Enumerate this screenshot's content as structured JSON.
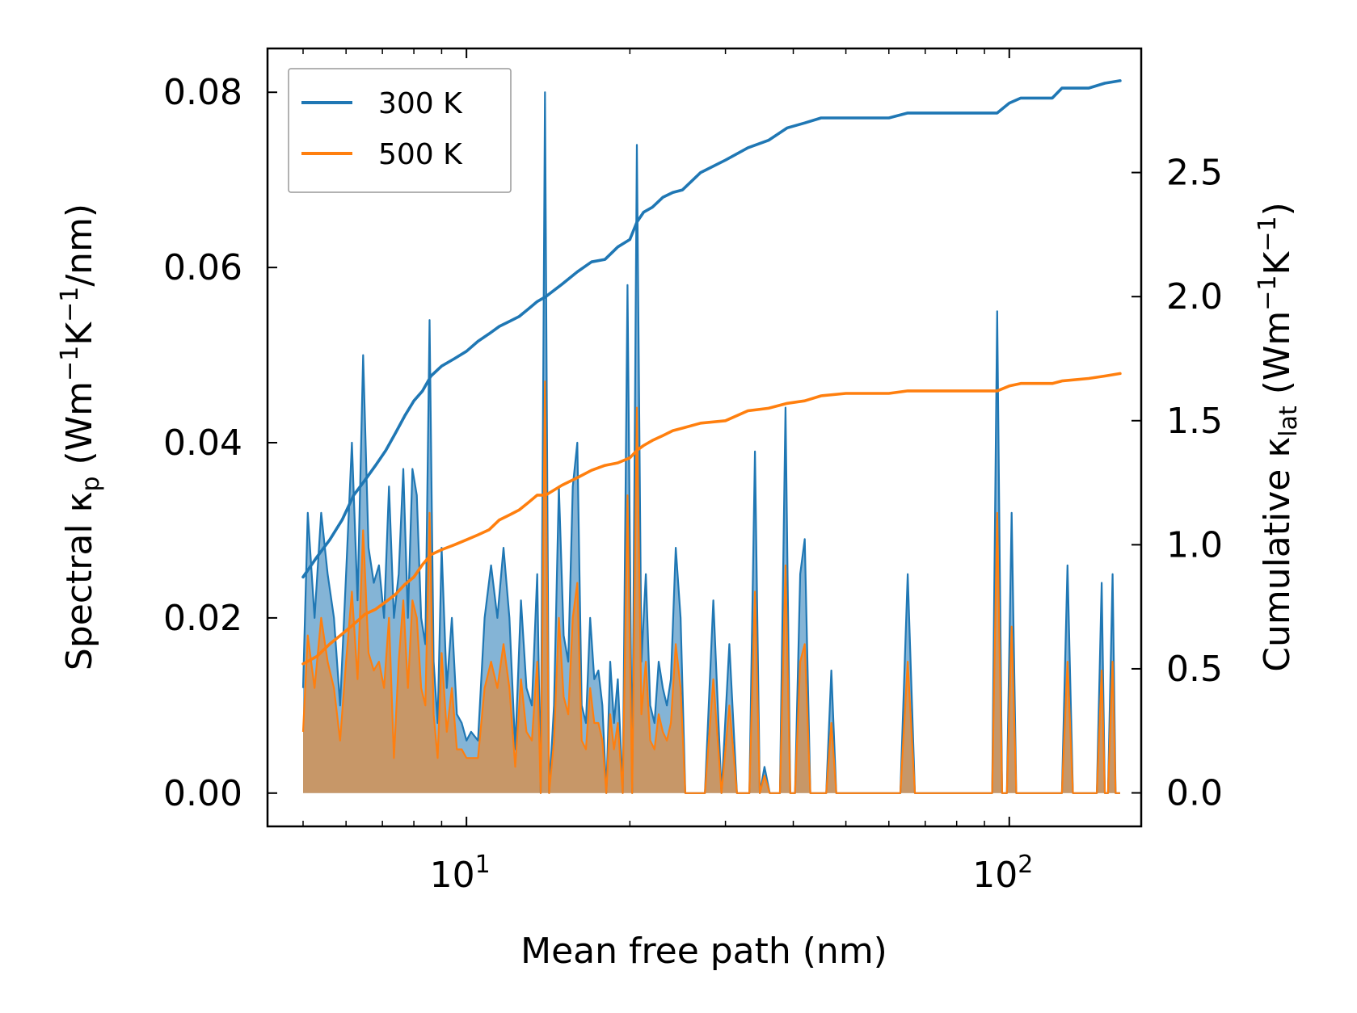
{
  "colors": {
    "series_300K": "#1f77b4",
    "series_500K": "#ff7f0e",
    "fill_300K": "#1f77b4",
    "fill_500K": "#ff7f0e",
    "axes": "#000000",
    "legend_border": "#999999"
  },
  "chart_data": {
    "type": "line",
    "title": "",
    "xlabel": "Mean free path (nm)",
    "ylabel_left": "Spectral κp (Wm⁻¹K⁻¹/nm)",
    "ylabel_right": "Cumulative κlat (Wm⁻¹K⁻¹)",
    "ylabel_left_parts": {
      "pre": "Spectral κ",
      "sub": "p",
      "unit_a": " (Wm",
      "sup1": "−1",
      "unit_b": "K",
      "sup2": "−1",
      "unit_c": "/nm)"
    },
    "ylabel_right_parts": {
      "pre": "Cumulative κ",
      "sub": "lat",
      "unit_a": " (Wm",
      "sup1": "−1",
      "unit_b": "K",
      "sup2": "−1",
      "unit_c": ")"
    },
    "xscale": "log",
    "xlim": [
      4.3,
      175
    ],
    "ylim_left": [
      -0.0038,
      0.085
    ],
    "ylim_right": [
      -0.135,
      3.0
    ],
    "x_ticks": [
      {
        "value": 10,
        "base": "10",
        "exp": "1"
      },
      {
        "value": 100,
        "base": "10",
        "exp": "2"
      }
    ],
    "y_ticks_left": [
      "0.00",
      "0.02",
      "0.04",
      "0.06",
      "0.08"
    ],
    "y_ticks_left_values": [
      0,
      0.02,
      0.04,
      0.06,
      0.08
    ],
    "y_ticks_right": [
      "0.0",
      "0.5",
      "1.0",
      "1.5",
      "2.0",
      "2.5"
    ],
    "y_ticks_right_values": [
      0,
      0.5,
      1.0,
      1.5,
      2.0,
      2.5
    ],
    "legend": {
      "position": "top-left",
      "entries": [
        "300 K",
        "500 K"
      ]
    },
    "series": [
      {
        "name": "300 K",
        "kind": "spectral",
        "x": [
          5.0,
          5.1,
          5.25,
          5.4,
          5.55,
          5.7,
          5.85,
          6.0,
          6.15,
          6.3,
          6.45,
          6.6,
          6.75,
          6.9,
          7.05,
          7.2,
          7.35,
          7.5,
          7.65,
          7.8,
          7.95,
          8.1,
          8.25,
          8.4,
          8.55,
          8.7,
          8.85,
          9.0,
          9.2,
          9.4,
          9.6,
          9.8,
          10.0,
          10.2,
          10.5,
          10.8,
          11.1,
          11.4,
          11.7,
          12.0,
          12.3,
          12.6,
          12.9,
          13.2,
          13.5,
          13.7,
          13.95,
          14.2,
          14.5,
          14.8,
          15.1,
          15.4,
          15.7,
          16.0,
          16.3,
          16.6,
          16.9,
          17.2,
          17.5,
          17.8,
          18.1,
          18.4,
          18.7,
          19.0,
          19.4,
          19.8,
          20.2,
          20.6,
          21.0,
          21.4,
          21.8,
          22.2,
          22.6,
          23.0,
          23.4,
          23.8,
          24.3,
          24.8,
          25.3,
          25.8,
          26.5,
          27.5,
          28.5,
          29.5,
          30.5,
          31.5,
          32.5,
          33.2,
          34.0,
          34.7,
          35.4,
          36.2,
          37.0,
          37.8,
          38.7,
          39.5,
          40.3,
          41.2,
          42.0,
          43.0,
          44.0,
          45.0,
          46.0,
          47.0,
          48.0,
          50.0,
          55.0,
          60.0,
          63.0,
          65.0,
          67.0,
          70.0,
          80.0,
          90.0,
          93.0,
          95.0,
          97.0,
          99.0,
          101.0,
          103.0,
          105.0,
          110.0,
          120.0,
          125.0,
          128.0,
          131.0,
          135.0,
          140.0,
          145.0,
          148.0,
          150.0,
          152.0,
          155.0,
          157.0,
          160.0
        ],
        "values": [
          0.012,
          0.032,
          0.02,
          0.032,
          0.025,
          0.02,
          0.01,
          0.025,
          0.04,
          0.022,
          0.05,
          0.028,
          0.024,
          0.026,
          0.02,
          0.035,
          0.02,
          0.025,
          0.037,
          0.02,
          0.037,
          0.034,
          0.02,
          0.017,
          0.054,
          0.015,
          0.008,
          0.028,
          0.012,
          0.02,
          0.009,
          0.008,
          0.006,
          0.007,
          0.006,
          0.02,
          0.026,
          0.02,
          0.028,
          0.02,
          0.005,
          0.022,
          0.012,
          0.01,
          0.025,
          0.0,
          0.08,
          0.0,
          0.01,
          0.035,
          0.018,
          0.015,
          0.035,
          0.04,
          0.01,
          0.008,
          0.02,
          0.013,
          0.014,
          0.01,
          0.0,
          0.015,
          0.008,
          0.013,
          0.0,
          0.058,
          0.0,
          0.074,
          0.015,
          0.025,
          0.01,
          0.008,
          0.015,
          0.012,
          0.01,
          0.013,
          0.028,
          0.02,
          0.0,
          0.0,
          0.0,
          0.0,
          0.022,
          0.0,
          0.017,
          0.0,
          0.0,
          0.0,
          0.039,
          0.0,
          0.003,
          0.0,
          0.0,
          0.0,
          0.044,
          0.0,
          0.0,
          0.025,
          0.029,
          0.0,
          0.0,
          0.0,
          0.0,
          0.014,
          0.0,
          0.0,
          0.0,
          0.0,
          0.0,
          0.025,
          0.0,
          0.0,
          0.0,
          0.0,
          0.0,
          0.055,
          0.0,
          0.0,
          0.032,
          0.0,
          0.0,
          0.0,
          0.0,
          0.0,
          0.026,
          0.0,
          0.0,
          0.0,
          0.0,
          0.024,
          0.0,
          0.0,
          0.025,
          0.0,
          0.0
        ]
      },
      {
        "name": "500 K",
        "kind": "spectral",
        "x": [
          5.0,
          5.1,
          5.25,
          5.4,
          5.55,
          5.7,
          5.85,
          6.0,
          6.15,
          6.3,
          6.45,
          6.6,
          6.75,
          6.9,
          7.05,
          7.2,
          7.35,
          7.5,
          7.65,
          7.8,
          7.95,
          8.1,
          8.25,
          8.4,
          8.55,
          8.7,
          8.85,
          9.0,
          9.2,
          9.4,
          9.6,
          9.8,
          10.0,
          10.2,
          10.5,
          10.8,
          11.1,
          11.4,
          11.7,
          12.0,
          12.3,
          12.6,
          12.9,
          13.2,
          13.5,
          13.7,
          13.95,
          14.2,
          14.5,
          14.8,
          15.1,
          15.4,
          15.7,
          16.0,
          16.3,
          16.6,
          16.9,
          17.2,
          17.5,
          17.8,
          18.1,
          18.4,
          18.7,
          19.0,
          19.4,
          19.8,
          20.2,
          20.6,
          21.0,
          21.4,
          21.8,
          22.2,
          22.6,
          23.0,
          23.4,
          23.8,
          24.3,
          24.8,
          25.3,
          25.8,
          26.5,
          27.5,
          28.5,
          29.5,
          30.5,
          31.5,
          32.5,
          33.2,
          34.0,
          34.7,
          35.4,
          36.2,
          37.0,
          37.8,
          38.7,
          39.5,
          40.3,
          41.2,
          42.0,
          43.0,
          44.0,
          45.0,
          46.0,
          47.0,
          48.0,
          50.0,
          55.0,
          60.0,
          63.0,
          65.0,
          67.0,
          70.0,
          80.0,
          90.0,
          93.0,
          95.0,
          97.0,
          99.0,
          101.0,
          103.0,
          105.0,
          110.0,
          120.0,
          125.0,
          128.0,
          131.0,
          135.0,
          140.0,
          145.0,
          148.0,
          150.0,
          152.0,
          155.0,
          157.0,
          160.0
        ],
        "values": [
          0.007,
          0.018,
          0.012,
          0.02,
          0.015,
          0.012,
          0.006,
          0.015,
          0.023,
          0.013,
          0.03,
          0.016,
          0.014,
          0.015,
          0.012,
          0.02,
          0.004,
          0.015,
          0.022,
          0.012,
          0.022,
          0.02,
          0.012,
          0.01,
          0.032,
          0.009,
          0.004,
          0.016,
          0.007,
          0.012,
          0.005,
          0.005,
          0.004,
          0.004,
          0.004,
          0.012,
          0.015,
          0.012,
          0.017,
          0.012,
          0.003,
          0.013,
          0.007,
          0.006,
          0.015,
          0.0,
          0.047,
          0.0,
          0.006,
          0.02,
          0.011,
          0.009,
          0.02,
          0.024,
          0.006,
          0.005,
          0.012,
          0.008,
          0.008,
          0.006,
          0.0,
          0.009,
          0.005,
          0.008,
          0.0,
          0.034,
          0.0,
          0.044,
          0.009,
          0.015,
          0.006,
          0.005,
          0.009,
          0.007,
          0.006,
          0.008,
          0.017,
          0.012,
          0.0,
          0.0,
          0.0,
          0.0,
          0.013,
          0.0,
          0.01,
          0.0,
          0.0,
          0.0,
          0.023,
          0.0,
          0.002,
          0.0,
          0.0,
          0.0,
          0.026,
          0.0,
          0.0,
          0.015,
          0.017,
          0.0,
          0.0,
          0.0,
          0.0,
          0.008,
          0.0,
          0.0,
          0.0,
          0.0,
          0.0,
          0.015,
          0.0,
          0.0,
          0.0,
          0.0,
          0.0,
          0.032,
          0.0,
          0.0,
          0.019,
          0.0,
          0.0,
          0.0,
          0.0,
          0.0,
          0.015,
          0.0,
          0.0,
          0.0,
          0.0,
          0.014,
          0.0,
          0.0,
          0.015,
          0.0,
          0.0
        ]
      },
      {
        "name": "300 K",
        "kind": "cumulative",
        "x": [
          5.0,
          5.3,
          5.6,
          5.9,
          6.2,
          6.5,
          6.8,
          7.1,
          7.4,
          7.7,
          8.0,
          8.3,
          8.6,
          9.0,
          9.5,
          10.0,
          10.5,
          11.0,
          11.5,
          12.0,
          12.5,
          13.0,
          13.5,
          14.0,
          15.0,
          16.0,
          17.0,
          18.0,
          19.0,
          20.0,
          20.6,
          21.2,
          22.0,
          23.0,
          24.0,
          25.0,
          27.0,
          30.0,
          33.0,
          36.0,
          39.0,
          42.0,
          45.0,
          50.0,
          60.0,
          65.0,
          80.0,
          95.0,
          100.0,
          105.0,
          120.0,
          125.0,
          140.0,
          150.0,
          160.0
        ],
        "values": [
          0.87,
          0.95,
          1.02,
          1.1,
          1.2,
          1.26,
          1.32,
          1.38,
          1.45,
          1.52,
          1.58,
          1.62,
          1.68,
          1.72,
          1.75,
          1.78,
          1.82,
          1.85,
          1.88,
          1.9,
          1.92,
          1.95,
          1.98,
          2.0,
          2.05,
          2.1,
          2.14,
          2.15,
          2.2,
          2.23,
          2.3,
          2.34,
          2.36,
          2.4,
          2.42,
          2.43,
          2.5,
          2.55,
          2.6,
          2.63,
          2.68,
          2.7,
          2.72,
          2.72,
          2.72,
          2.74,
          2.74,
          2.74,
          2.78,
          2.8,
          2.8,
          2.84,
          2.84,
          2.86,
          2.87
        ]
      },
      {
        "name": "500 K",
        "kind": "cumulative",
        "x": [
          5.0,
          5.3,
          5.6,
          5.9,
          6.2,
          6.5,
          6.8,
          7.1,
          7.4,
          7.7,
          8.0,
          8.3,
          8.6,
          9.0,
          9.5,
          10.0,
          10.5,
          11.0,
          11.5,
          12.0,
          12.5,
          13.0,
          13.5,
          14.0,
          15.0,
          16.0,
          17.0,
          18.0,
          19.0,
          20.0,
          20.6,
          21.2,
          22.0,
          23.0,
          24.0,
          25.0,
          27.0,
          30.0,
          33.0,
          36.0,
          39.0,
          42.0,
          45.0,
          50.0,
          60.0,
          65.0,
          80.0,
          95.0,
          100.0,
          105.0,
          120.0,
          125.0,
          140.0,
          150.0,
          160.0
        ],
        "values": [
          0.52,
          0.55,
          0.6,
          0.64,
          0.68,
          0.72,
          0.74,
          0.77,
          0.8,
          0.84,
          0.87,
          0.92,
          0.96,
          0.98,
          1.0,
          1.02,
          1.04,
          1.06,
          1.1,
          1.12,
          1.14,
          1.17,
          1.2,
          1.2,
          1.24,
          1.27,
          1.3,
          1.32,
          1.33,
          1.35,
          1.38,
          1.4,
          1.42,
          1.44,
          1.46,
          1.47,
          1.49,
          1.5,
          1.54,
          1.55,
          1.57,
          1.58,
          1.6,
          1.61,
          1.61,
          1.62,
          1.62,
          1.62,
          1.64,
          1.65,
          1.65,
          1.66,
          1.67,
          1.68,
          1.69
        ]
      }
    ]
  }
}
